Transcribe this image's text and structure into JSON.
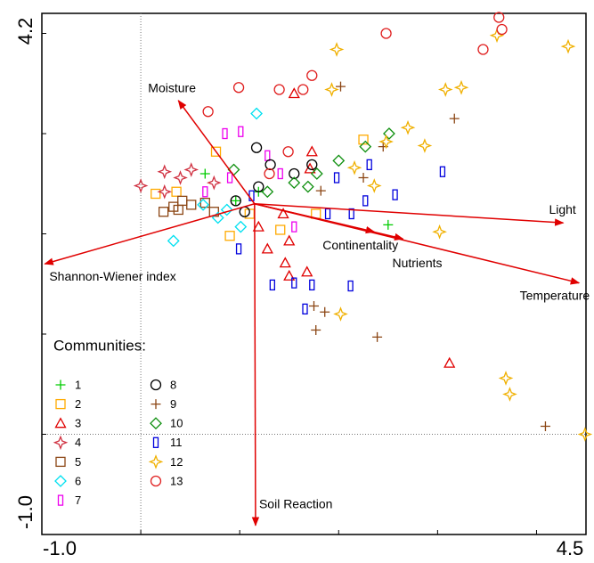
{
  "chart_data": {
    "type": "scatter",
    "xlim": [
      -1,
      4.5
    ],
    "ylim": [
      -1,
      4.2
    ],
    "xticks": [
      {
        "value": -1,
        "label": "-1.0"
      },
      4.5
    ],
    "yticks": [
      {
        "value": -1,
        "label": "-1.0"
      },
      4.2
    ],
    "x_minor_ticks": [
      0,
      1,
      2,
      3,
      4
    ],
    "y_minor_ticks": [
      0,
      1,
      2,
      3,
      4
    ],
    "ref_x": 0,
    "ref_y": 0,
    "legend_title": "Communities:",
    "legend": "lower left",
    "vector_color": "#e00000",
    "vector_origin": [
      1.15,
      2.3
    ],
    "vectors": [
      {
        "name": "Moisture",
        "x": 0.38,
        "y": 3.33
      },
      {
        "name": "Light",
        "x": 4.27,
        "y": 2.11
      },
      {
        "name": "Temperature",
        "x": 4.43,
        "y": 1.51
      },
      {
        "name": "Continentality",
        "x": 2.36,
        "y": 2.02
      },
      {
        "name": "Nutrients",
        "x": 2.65,
        "y": 1.95
      },
      {
        "name": "Shannon-Wiener index",
        "x": -0.97,
        "y": 1.7
      },
      {
        "name": "Soil Reaction",
        "x": 1.16,
        "y": -0.91
      }
    ],
    "series": [
      {
        "name": "1",
        "color": "#00cc00",
        "marker": "plus",
        "x": [
          2.5,
          0.65,
          0.96,
          1.19
        ],
        "values": [
          2.09,
          2.6,
          2.33,
          2.42
        ]
      },
      {
        "name": "2",
        "color": "#ffaa00",
        "marker": "square",
        "x": [
          2.25,
          0.76,
          0.15,
          0.36,
          0.9,
          1.41,
          1.77,
          1.1
        ],
        "values": [
          2.94,
          2.82,
          2.4,
          2.42,
          1.98,
          2.04,
          2.2,
          2.2
        ]
      },
      {
        "name": "3",
        "color": "#e00000",
        "marker": "triangle",
        "x": [
          1.55,
          1.73,
          1.71,
          1.5,
          1.46,
          1.68,
          1.5,
          3.12,
          1.28,
          1.19,
          1.44
        ],
        "values": [
          3.4,
          2.82,
          2.65,
          1.93,
          1.71,
          1.62,
          1.58,
          0.71,
          1.85,
          2.07,
          2.2
        ]
      },
      {
        "name": "4",
        "color": "#d03040",
        "marker": "star",
        "x": [
          0.0,
          0.24,
          0.24,
          0.51,
          0.74,
          0.4
        ],
        "values": [
          2.48,
          2.62,
          2.42,
          2.64,
          2.51,
          2.56
        ]
      },
      {
        "name": "5",
        "color": "#8b4513",
        "marker": "square",
        "x": [
          0.23,
          0.38,
          0.51,
          0.65,
          0.74,
          0.42,
          0.33
        ],
        "values": [
          2.22,
          2.24,
          2.29,
          2.31,
          2.22,
          2.33,
          2.27
        ]
      },
      {
        "name": "6",
        "color": "#00e0f0",
        "marker": "diamond",
        "x": [
          1.17,
          0.33,
          0.78,
          1.01,
          0.63,
          0.87
        ],
        "values": [
          3.2,
          1.93,
          2.16,
          2.07,
          2.29,
          2.24
        ]
      },
      {
        "name": "7",
        "color": "#ee00ee",
        "marker": "bar",
        "x": [
          0.85,
          1.01,
          1.28,
          1.41,
          0.9,
          1.55,
          0.65
        ],
        "values": [
          3.0,
          3.02,
          2.78,
          2.6,
          2.56,
          2.07,
          2.42
        ]
      },
      {
        "name": "8",
        "color": "#000000",
        "marker": "circle",
        "x": [
          1.17,
          1.73,
          1.31,
          0.96,
          1.19,
          1.55,
          1.05
        ],
        "values": [
          2.86,
          2.69,
          2.69,
          2.33,
          2.47,
          2.6,
          2.22
        ]
      },
      {
        "name": "9",
        "color": "#8b4513",
        "marker": "plus",
        "x": [
          2.02,
          3.17,
          2.45,
          2.25,
          1.82,
          1.75,
          1.86,
          1.77,
          2.39,
          4.09
        ],
        "values": [
          3.47,
          3.15,
          2.87,
          2.56,
          2.43,
          1.28,
          1.22,
          1.04,
          0.97,
          0.08
        ]
      },
      {
        "name": "10",
        "color": "#109010",
        "marker": "diamond",
        "x": [
          2.51,
          2.27,
          2.0,
          1.78,
          1.69,
          1.55,
          0.94,
          1.28
        ],
        "values": [
          3.0,
          2.87,
          2.73,
          2.6,
          2.47,
          2.51,
          2.64,
          2.42
        ]
      },
      {
        "name": "11",
        "color": "#0000dd",
        "marker": "bar",
        "x": [
          3.05,
          2.57,
          2.31,
          1.98,
          1.89,
          2.13,
          2.27,
          2.12,
          1.73,
          1.55,
          1.33,
          1.66,
          0.99,
          1.12
        ],
        "values": [
          2.62,
          2.39,
          2.69,
          2.56,
          2.2,
          2.2,
          2.33,
          1.48,
          1.49,
          1.51,
          1.49,
          1.25,
          1.85,
          2.38
        ]
      },
      {
        "name": "12",
        "color": "#f0b000",
        "marker": "star",
        "x": [
          1.98,
          3.6,
          4.32,
          3.24,
          3.08,
          1.93,
          2.7,
          2.87,
          2.48,
          2.16,
          2.36,
          3.02,
          2.02,
          3.69,
          3.73,
          4.49
        ],
        "values": [
          3.84,
          3.98,
          3.87,
          3.46,
          3.44,
          3.44,
          3.06,
          2.88,
          2.92,
          2.66,
          2.48,
          2.02,
          1.2,
          0.56,
          0.4,
          0.0
        ]
      },
      {
        "name": "13",
        "color": "#e02020",
        "marker": "circle",
        "x": [
          3.62,
          3.65,
          3.46,
          2.48,
          1.73,
          1.64,
          1.4,
          0.99,
          0.68,
          1.49,
          1.3
        ],
        "values": [
          4.16,
          4.04,
          3.84,
          4.0,
          3.58,
          3.44,
          3.44,
          3.46,
          3.22,
          2.82,
          2.6
        ]
      }
    ]
  }
}
